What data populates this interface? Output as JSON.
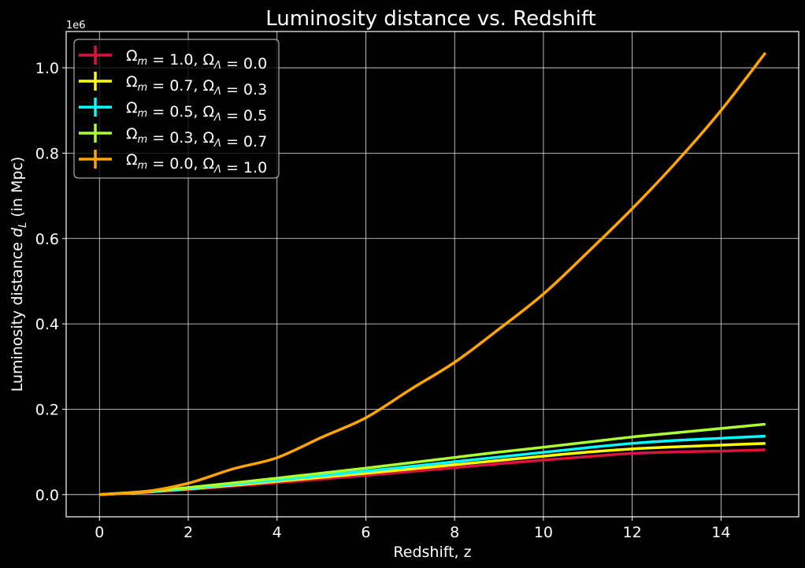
{
  "chart_data": {
    "type": "line",
    "title": "Luminosity distance vs. Redshift",
    "xlabel": "Redshift, z",
    "ylabel_main": "Luminosity distance ",
    "ylabel_symbol": "d",
    "ylabel_sub": "L",
    "ylabel_unit": " (in Mpc)",
    "y_offset_label": "1e6",
    "xlim": [
      -0.75,
      15.75
    ],
    "ylim": [
      -0.052,
      1.085
    ],
    "x_ticks": [
      0,
      2,
      4,
      6,
      8,
      10,
      12,
      14
    ],
    "x_tick_labels": [
      "0",
      "2",
      "4",
      "6",
      "8",
      "10",
      "12",
      "14"
    ],
    "y_ticks": [
      0.0,
      0.2,
      0.4,
      0.6,
      0.8,
      1.0
    ],
    "y_tick_labels": [
      "0.0",
      "0.2",
      "0.4",
      "0.6",
      "0.8",
      "1.0"
    ],
    "grid": true,
    "legend_position": "top-left",
    "background": "#000000",
    "x": [
      0,
      1,
      2,
      3,
      4,
      5,
      6,
      7,
      8,
      9,
      10,
      11,
      12,
      13,
      14,
      15
    ],
    "series": [
      {
        "omega_m": "1.0",
        "omega_l": "0.0",
        "color": "#dc143c",
        "values": [
          0,
          0.0051,
          0.0119,
          0.0196,
          0.0278,
          0.0364,
          0.045,
          0.0541,
          0.0632,
          0.0724,
          0.081,
          0.089,
          0.0965,
          0.1,
          0.102,
          0.105
        ]
      },
      {
        "omega_m": "0.7",
        "omega_l": "0.3",
        "color": "#ffff00",
        "values": [
          0,
          0.0057,
          0.0133,
          0.0218,
          0.031,
          0.0404,
          0.05,
          0.06,
          0.07,
          0.08,
          0.09,
          0.0995,
          0.107,
          0.112,
          0.116,
          0.12
        ]
      },
      {
        "omega_m": "0.5",
        "omega_l": "0.5",
        "color": "#00ffff",
        "values": [
          0,
          0.0062,
          0.0145,
          0.024,
          0.034,
          0.0445,
          0.055,
          0.066,
          0.077,
          0.088,
          0.099,
          0.11,
          0.12,
          0.127,
          0.132,
          0.137
        ]
      },
      {
        "omega_m": "0.3",
        "omega_l": "0.7",
        "color": "#adff2f",
        "values": [
          0,
          0.007,
          0.0165,
          0.0272,
          0.0385,
          0.0502,
          0.062,
          0.0745,
          0.087,
          0.0995,
          0.111,
          0.123,
          0.135,
          0.145,
          0.155,
          0.165
        ]
      },
      {
        "omega_m": "0.0",
        "omega_l": "1.0",
        "color": "#ffa500",
        "values": [
          0,
          0.0067,
          0.0266,
          0.0599,
          0.0865,
          0.134,
          0.18,
          0.246,
          0.31,
          0.388,
          0.47,
          0.568,
          0.67,
          0.78,
          0.9,
          1.035
        ]
      }
    ]
  }
}
